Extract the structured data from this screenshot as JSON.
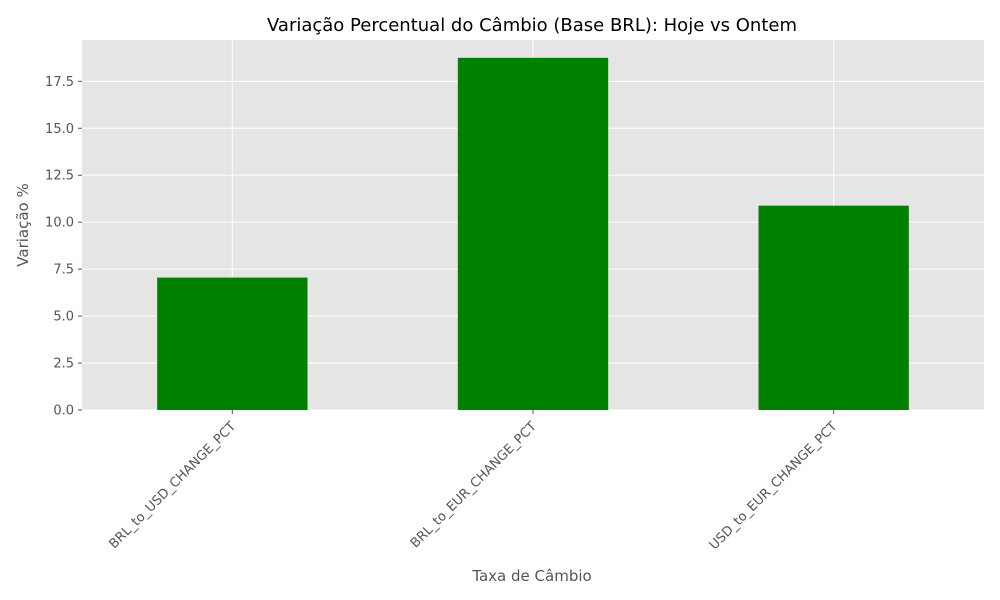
{
  "chart_data": {
    "type": "bar",
    "title": "Variação Percentual do Câmbio (Base BRL): Hoje vs Ontem",
    "xlabel": "Taxa de Câmbio",
    "ylabel": "Variação %",
    "categories": [
      "BRL_to_USD_CHANGE_PCT",
      "BRL_to_EUR_CHANGE_PCT",
      "USD_to_EUR_CHANGE_PCT"
    ],
    "values": [
      7.05,
      18.75,
      10.88
    ],
    "ylim": [
      0,
      19.7
    ],
    "yticks": [
      0.0,
      2.5,
      5.0,
      7.5,
      10.0,
      12.5,
      15.0,
      17.5
    ],
    "ytick_labels": [
      "0.0",
      "2.5",
      "5.0",
      "7.5",
      "10.0",
      "12.5",
      "15.0",
      "17.5"
    ],
    "grid": true,
    "colors": {
      "bar": "#008000",
      "plot_background": "#E5E5E5",
      "grid": "#FFFFFF"
    }
  }
}
